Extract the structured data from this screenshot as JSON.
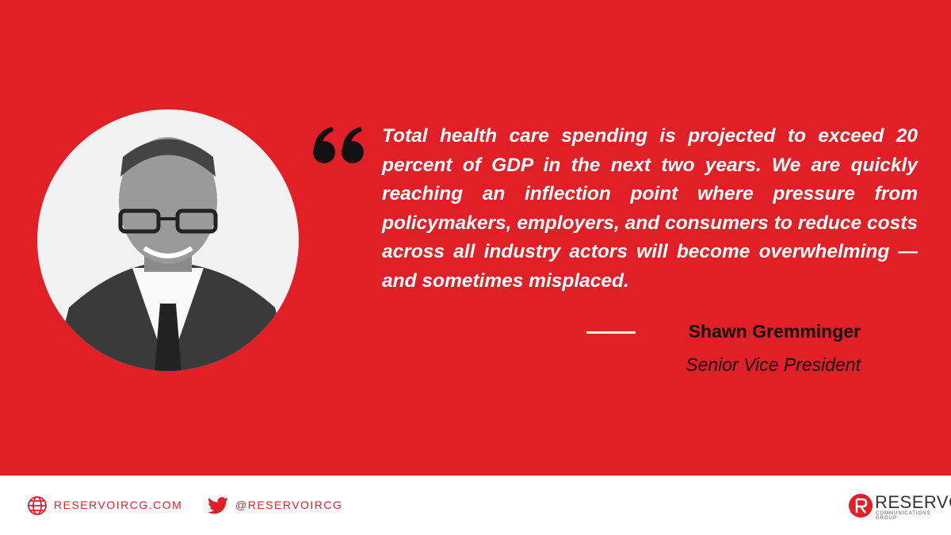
{
  "quote": {
    "text": "Total health care spending is projected to exceed 20 percent of GDP in the next two years. We are quickly reaching an inflection point where pressure from policymakers, employers, and consumers to reduce costs across all industry actors will become overwhelming — and sometimes misplaced."
  },
  "attribution": {
    "name": "Shawn Gremminger",
    "title": "Senior Vice President"
  },
  "footer": {
    "website": "RESERVOIRCG.COM",
    "twitter": "@RESERVOIRCG",
    "logo": {
      "name": "RESERVOIR",
      "tagline": "COMMUNICATIONS GROUP"
    }
  }
}
